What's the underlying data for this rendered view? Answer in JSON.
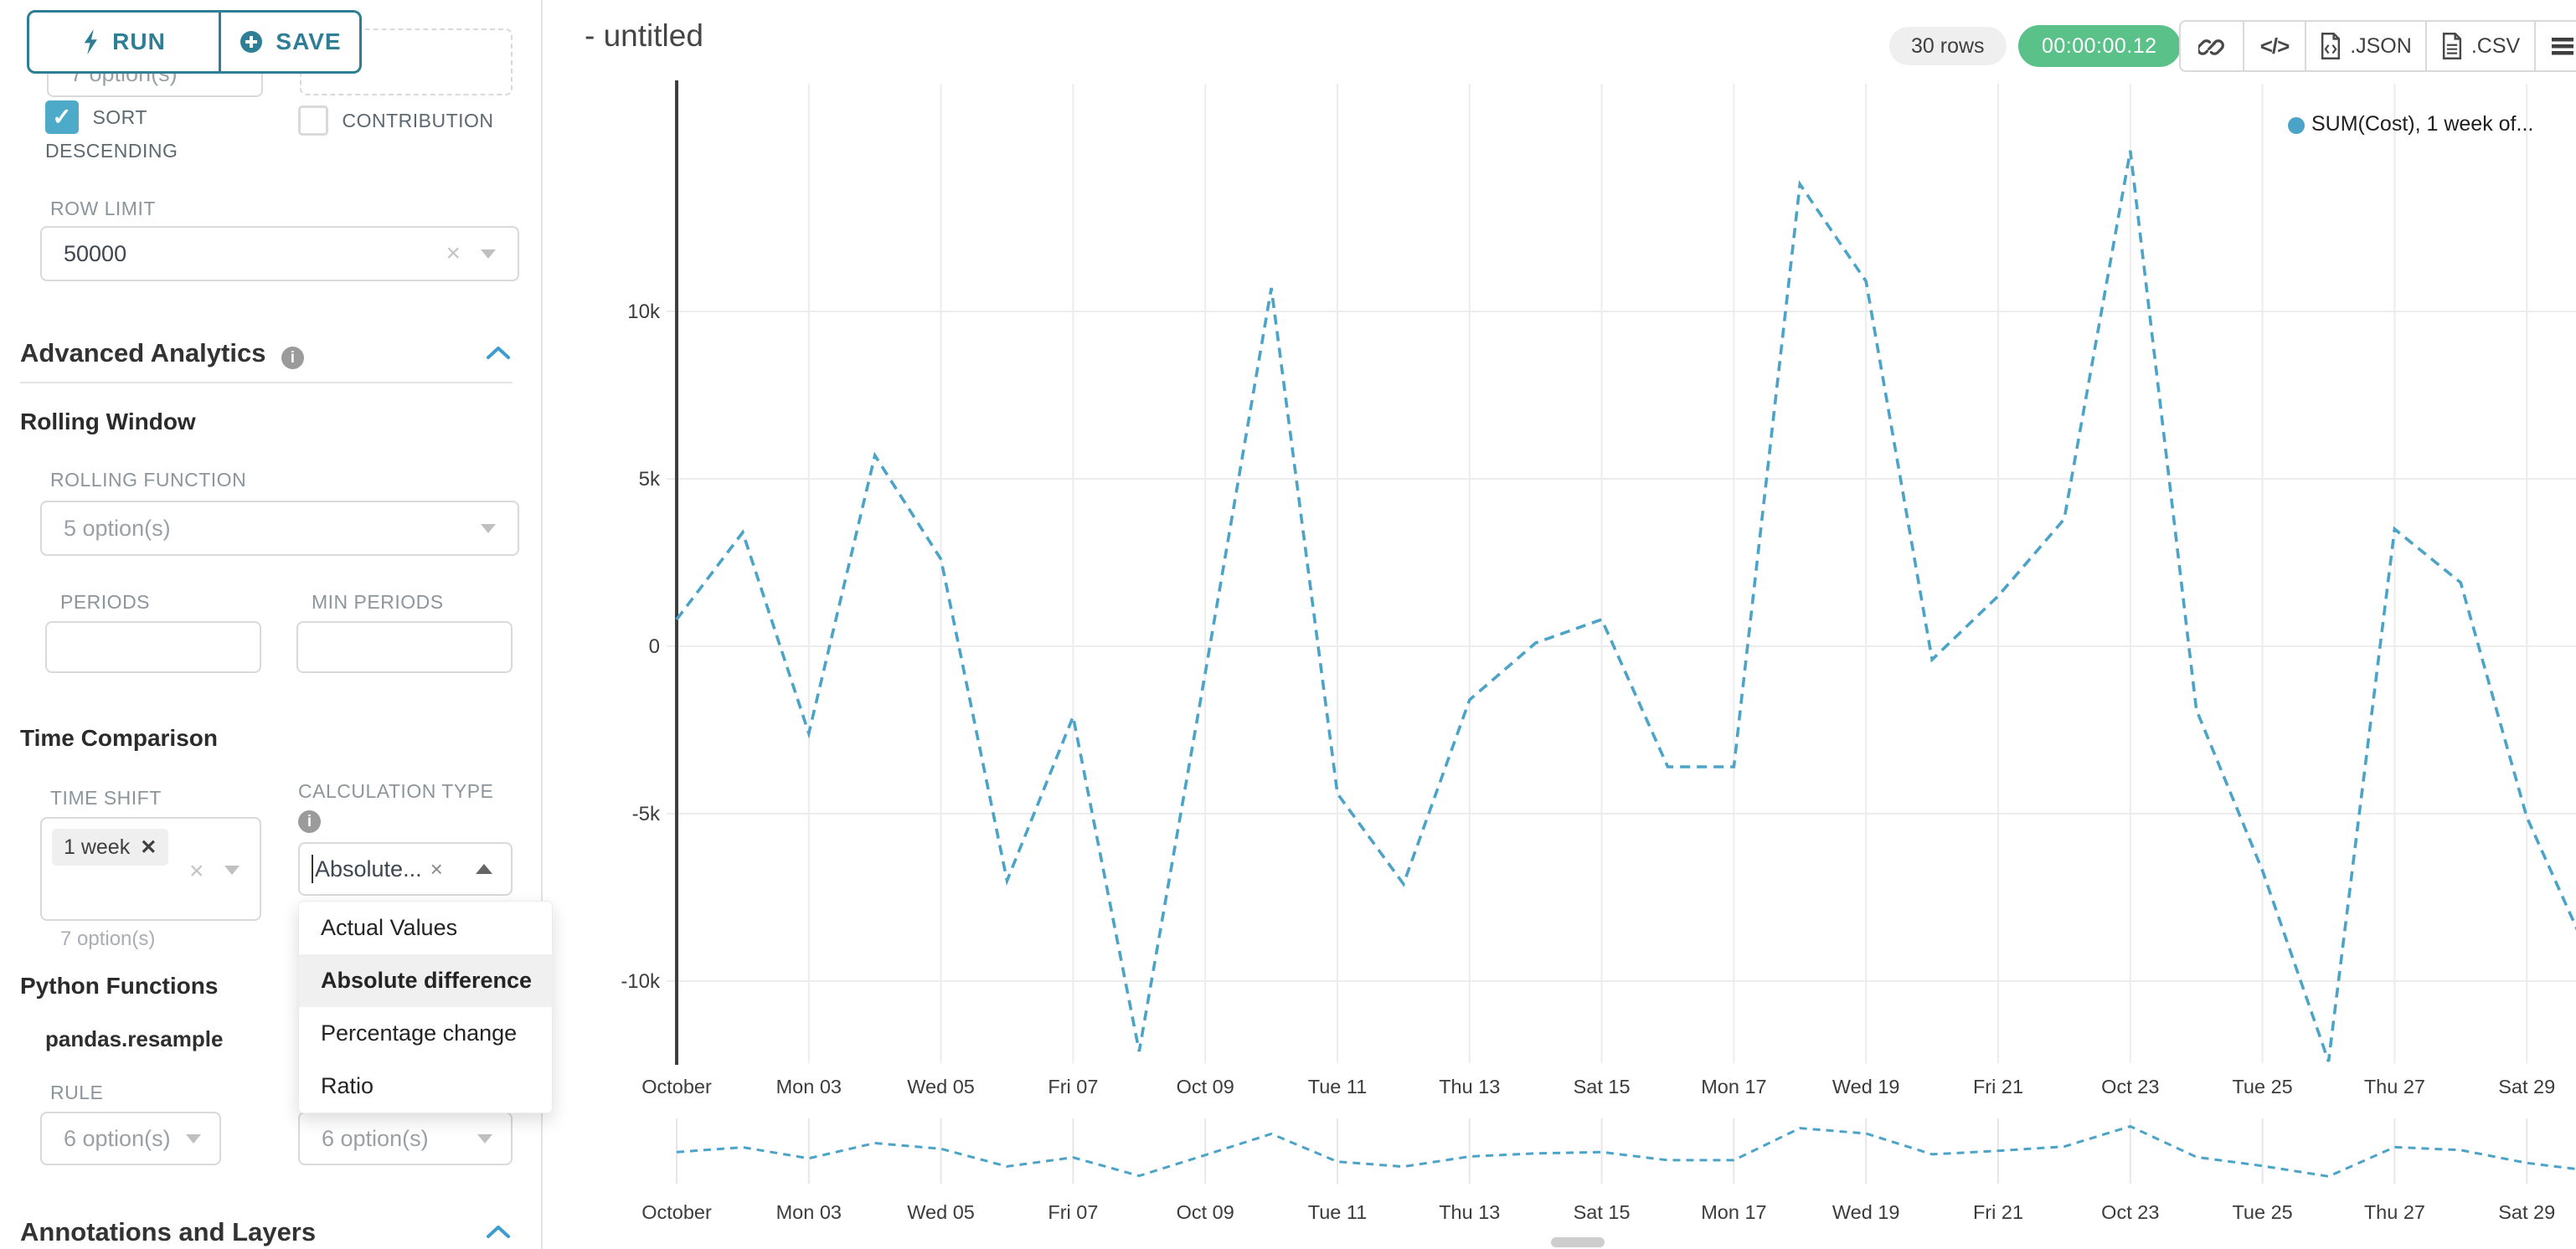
{
  "toolbar": {
    "run_label": "RUN",
    "save_label": "SAVE"
  },
  "sidebar": {
    "top_partial_select": {
      "placeholder": "7 option(s)"
    },
    "sort_descending": {
      "label": "SORT DESCENDING",
      "checked": true
    },
    "contribution": {
      "label": "CONTRIBUTION",
      "checked": false
    },
    "row_limit": {
      "label": "ROW LIMIT",
      "value": "50000"
    },
    "advanced_analytics": {
      "title": "Advanced Analytics"
    },
    "rolling_window": {
      "title": "Rolling Window",
      "rolling_function_label": "ROLLING FUNCTION",
      "rolling_function_placeholder": "5 option(s)",
      "periods_label": "PERIODS",
      "min_periods_label": "MIN PERIODS"
    },
    "time_comparison": {
      "title": "Time Comparison",
      "time_shift_label": "TIME SHIFT",
      "time_shift_tag": "1 week",
      "time_shift_helper": "7 option(s)",
      "calculation_type_label": "CALCULATION TYPE",
      "calculation_type_value": "Absolute...",
      "dropdown_options": [
        "Actual Values",
        "Absolute difference",
        "Percentage change",
        "Ratio"
      ],
      "dropdown_selected_index": 1
    },
    "python_functions": {
      "title": "Python Functions",
      "subtitle": "pandas.resample",
      "rule_label": "RULE",
      "rule_placeholder": "6 option(s)",
      "rule2_placeholder": "6 option(s)"
    },
    "annotations": {
      "title": "Annotations and Layers"
    }
  },
  "header": {
    "title": "- untitled",
    "rows_badge": "30 rows",
    "timer": "00:00:00.12",
    "timer_color": "#5ac189",
    "export_json_label": ".JSON",
    "export_csv_label": ".CSV"
  },
  "chart_data": {
    "type": "line",
    "title": "- untitled",
    "legend": {
      "label": "SUM(Cost), 1 week of...",
      "position": "top-right"
    },
    "series_color": "#4ba3c7",
    "line_style": "dashed",
    "grid": true,
    "x_start": "October 01",
    "x_frequency": "daily",
    "points": 30,
    "x_tick_labels": [
      "October",
      "Mon 03",
      "Wed 05",
      "Fri 07",
      "Oct 09",
      "Tue 11",
      "Thu 13",
      "Sat 15",
      "Mon 17",
      "Wed 19",
      "Fri 21",
      "Oct 23",
      "Tue 25",
      "Thu 27",
      "Sat 29"
    ],
    "y_ticks": [
      {
        "label": "10k",
        "value": 10000
      },
      {
        "label": "5k",
        "value": 5000
      },
      {
        "label": "0",
        "value": 0
      },
      {
        "label": "-5k",
        "value": -5000
      },
      {
        "label": "-10k",
        "value": -10000
      }
    ],
    "ylim": [
      -12500,
      15000
    ],
    "series": [
      {
        "name": "SUM(Cost), 1 week offset (Absolute difference)",
        "values": [
          800,
          3400,
          -2600,
          5700,
          2600,
          -7000,
          -2100,
          -12100,
          -800,
          10700,
          -4400,
          -7100,
          -1600,
          100,
          800,
          -3600,
          -3600,
          13800,
          10900,
          -400,
          1500,
          3800,
          14800,
          -1900,
          -6700,
          -12400,
          3500,
          1900,
          -5100,
          -9500
        ]
      }
    ],
    "has_mini_preview": true
  }
}
